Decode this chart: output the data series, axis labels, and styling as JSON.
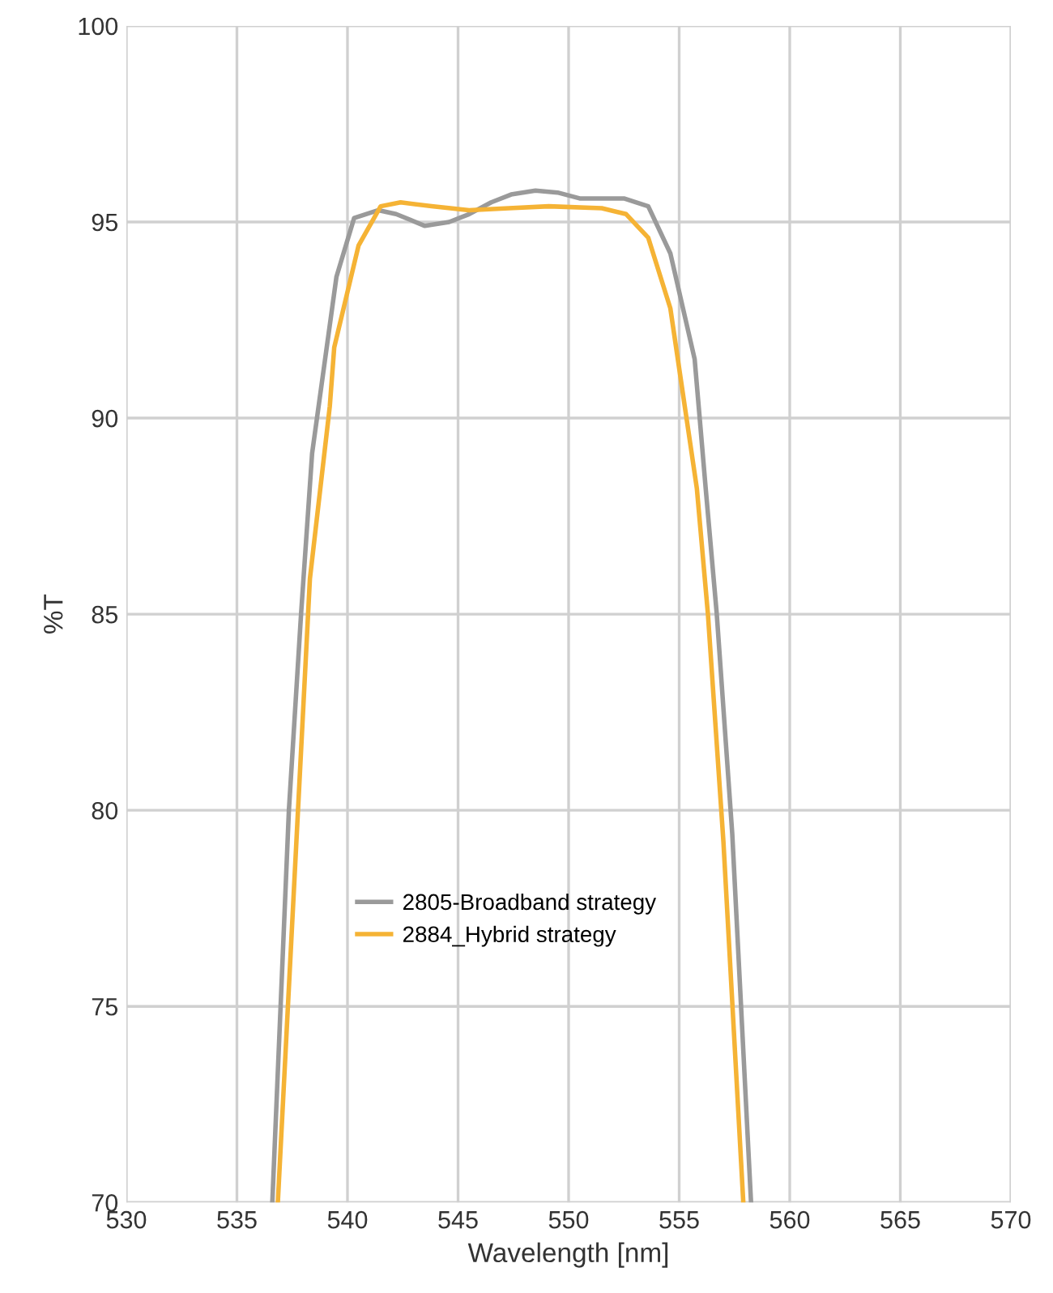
{
  "chart_data": {
    "type": "line",
    "xlabel": "Wavelength [nm]",
    "ylabel": "%T",
    "xlim": [
      530,
      570
    ],
    "xticks": [
      530,
      535,
      540,
      545,
      550,
      555,
      560,
      565,
      570
    ],
    "ylim": [
      70,
      100
    ],
    "yticks": [
      70,
      75,
      80,
      85,
      90,
      95,
      100
    ],
    "grid": true,
    "legend": "center",
    "marker": "none",
    "line_style": "solid",
    "series": [
      {
        "name": "2805-Broadband strategy",
        "color": "#9a9a9a",
        "x": [
          536.6,
          537.35,
          537.9,
          538.4,
          539.5,
          540.3,
          541.4,
          542.2,
          543.5,
          544.6,
          545.5,
          546.5,
          547.4,
          548.5,
          549.5,
          550.5,
          551.5,
          552.5,
          553.6,
          554.6,
          555.7,
          556.2,
          556.7,
          557.4,
          558.25
        ],
        "values": [
          70,
          80,
          85,
          89.1,
          93.6,
          95.1,
          95.3,
          95.2,
          94.9,
          95.0,
          95.2,
          95.5,
          95.7,
          95.8,
          95.75,
          95.6,
          95.6,
          95.6,
          95.4,
          94.2,
          91.5,
          88.2,
          85,
          79.4,
          70
        ]
      },
      {
        "name": "2884_Hybrid strategy",
        "color": "#f5b335",
        "x": [
          536.85,
          538.3,
          539.2,
          539.4,
          540.5,
          541.5,
          542.4,
          543.8,
          545.5,
          547.3,
          549.1,
          551.5,
          552.6,
          553.6,
          554.6,
          555.8,
          556.3,
          557.0,
          557.9
        ],
        "values": [
          70,
          85.9,
          90.3,
          91.8,
          94.4,
          95.4,
          95.5,
          95.4,
          95.3,
          95.35,
          95.4,
          95.35,
          95.2,
          94.6,
          92.8,
          88.2,
          85,
          79.2,
          70
        ]
      }
    ]
  }
}
